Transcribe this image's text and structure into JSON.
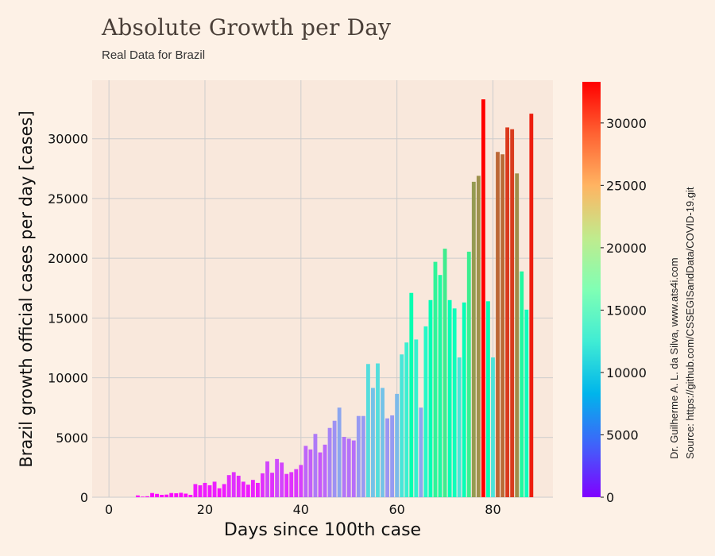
{
  "header": {
    "title": "Absolute Growth per Day",
    "subtitle": "Real Data for Brazil"
  },
  "credits": {
    "author": "Dr. Guilherme A. L. da Silva, www.ats4i.com",
    "source": "Source: https://github.com/CSSEGISandData/COVID-19.git"
  },
  "colorbar": {
    "colormap": "rainbow",
    "range": [
      0,
      33300
    ],
    "ticks": [
      0,
      5000,
      10000,
      15000,
      20000,
      25000,
      30000
    ]
  },
  "chart_data": {
    "type": "bar",
    "title": "Absolute Growth per Day",
    "subtitle": "Real Data for Brazil",
    "xlabel": "Days since 100th case",
    "ylabel": "Brazil growth official cases per day [cases]",
    "xlim": [
      -3.5,
      92.5
    ],
    "ylim": [
      0,
      34900
    ],
    "xticks": [
      0,
      20,
      40,
      60,
      80
    ],
    "yticks": [
      0,
      5000,
      10000,
      15000,
      20000,
      25000,
      30000
    ],
    "grid": true,
    "colors": {
      "plot_bg": "#f9e8dc",
      "page_bg": "#fdf1e6",
      "grid": "#cccccc"
    },
    "x": [
      1,
      2,
      3,
      4,
      5,
      6,
      7,
      8,
      9,
      10,
      11,
      12,
      13,
      14,
      15,
      16,
      17,
      18,
      19,
      20,
      21,
      22,
      23,
      24,
      25,
      26,
      27,
      28,
      29,
      30,
      31,
      32,
      33,
      34,
      35,
      36,
      37,
      38,
      39,
      40,
      41,
      42,
      43,
      44,
      45,
      46,
      47,
      48,
      49,
      50,
      51,
      52,
      53,
      54,
      55,
      56,
      57,
      58,
      59,
      60,
      61,
      62,
      63,
      64,
      65,
      66,
      67,
      68,
      69,
      70,
      71,
      72,
      73,
      74,
      75,
      76,
      77,
      78,
      79,
      80,
      81,
      82,
      83,
      84,
      85,
      86,
      87,
      88
    ],
    "values": [
      0,
      0,
      0,
      0,
      0,
      150,
      50,
      80,
      350,
      280,
      200,
      220,
      350,
      330,
      370,
      300,
      200,
      1100,
      1000,
      1200,
      1000,
      1300,
      750,
      1100,
      1850,
      2100,
      1800,
      1300,
      1050,
      1450,
      1200,
      2000,
      3000,
      2050,
      3200,
      2900,
      1950,
      2100,
      2350,
      2700,
      4300,
      4000,
      5300,
      3750,
      4400,
      5800,
      6400,
      7500,
      5050,
      4900,
      4750,
      6800,
      6800,
      11150,
      9150,
      11200,
      9150,
      6600,
      6850,
      8650,
      11950,
      12950,
      17100,
      13200,
      7500,
      14300,
      16500,
      19700,
      18600,
      20800,
      16500,
      15800,
      11700,
      16300,
      20550,
      26400,
      26900,
      33300,
      16400,
      11700,
      28900,
      28700,
      30950,
      30800,
      27100,
      18900,
      15700,
      32100
    ]
  }
}
